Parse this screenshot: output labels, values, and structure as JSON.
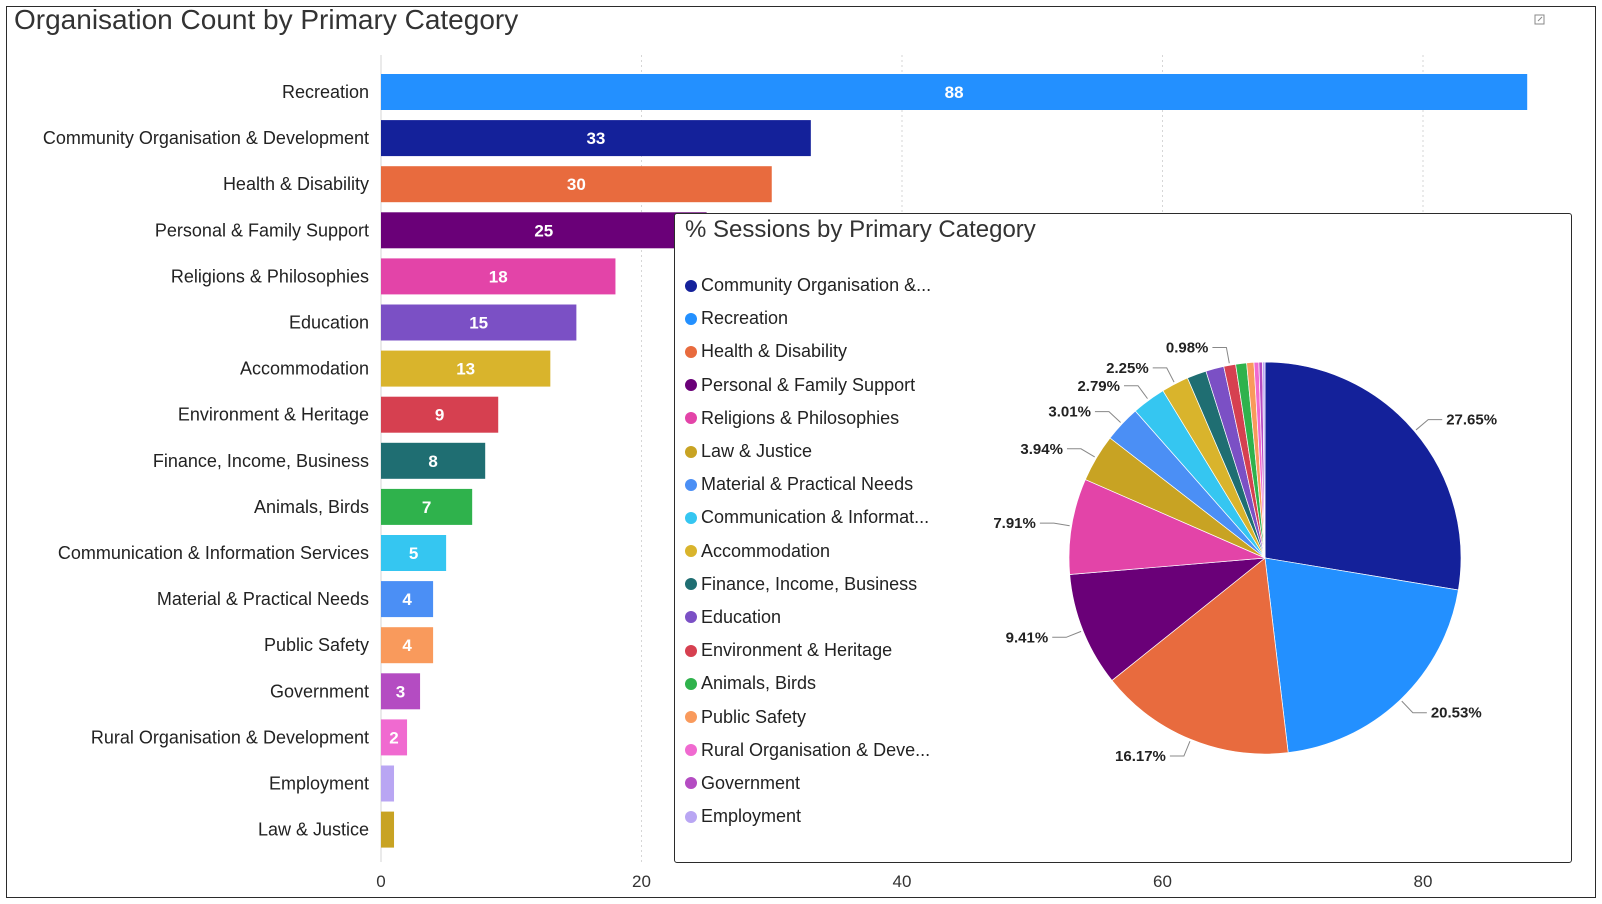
{
  "bar_chart": {
    "title": "Organisation Count by Primary Category"
  },
  "pie_chart": {
    "title": "% Sessions by Primary Category",
    "legend": [
      {
        "label": "Community Organisation &...",
        "color": "#14219a"
      },
      {
        "label": "Recreation",
        "color": "#2390ff"
      },
      {
        "label": "Health & Disability",
        "color": "#e86b3e"
      },
      {
        "label": "Personal & Family Support",
        "color": "#6a0078"
      },
      {
        "label": "Religions & Philosophies",
        "color": "#e344a8"
      },
      {
        "label": "Law & Justice",
        "color": "#c8a323"
      },
      {
        "label": "Material & Practical Needs",
        "color": "#4b8ff5"
      },
      {
        "label": "Communication & Informat...",
        "color": "#35c6f1"
      },
      {
        "label": "Accommodation",
        "color": "#d9b42c"
      },
      {
        "label": "Finance, Income, Business",
        "color": "#1f6e72"
      },
      {
        "label": "Education",
        "color": "#7b50c5"
      },
      {
        "label": "Environment & Heritage",
        "color": "#d64050"
      },
      {
        "label": "Animals, Birds",
        "color": "#2fb24c"
      },
      {
        "label": "Public Safety",
        "color": "#f99a5c"
      },
      {
        "label": "Rural Organisation & Deve...",
        "color": "#f06ad0"
      },
      {
        "label": "Government",
        "color": "#b44cc2"
      },
      {
        "label": "Employment",
        "color": "#b9a6f3"
      }
    ]
  },
  "chart_data": [
    {
      "type": "bar",
      "orientation": "horizontal",
      "title": "Organisation Count by Primary Category",
      "categories": [
        "Recreation",
        "Community Organisation & Development",
        "Health & Disability",
        "Personal & Family Support",
        "Religions & Philosophies",
        "Education",
        "Accommodation",
        "Environment & Heritage",
        "Finance, Income, Business",
        "Animals, Birds",
        "Communication & Information Services",
        "Material & Practical Needs",
        "Public Safety",
        "Government",
        "Rural Organisation & Development",
        "Employment",
        "Law & Justice"
      ],
      "values": [
        88,
        33,
        30,
        25,
        18,
        15,
        13,
        9,
        8,
        7,
        5,
        4,
        4,
        3,
        2,
        1,
        1
      ],
      "data_labels": [
        "88",
        "33",
        "30",
        "25",
        "18",
        "15",
        "13",
        "9",
        "8",
        "7",
        "5",
        "4",
        "4",
        "3",
        "2",
        "",
        ""
      ],
      "colors": [
        "#2390ff",
        "#14219a",
        "#e86b3e",
        "#6a0078",
        "#e344a8",
        "#7b50c5",
        "#d9b42c",
        "#d64050",
        "#1f6e72",
        "#2fb24c",
        "#35c6f1",
        "#4b8ff5",
        "#f99a5c",
        "#b44cc2",
        "#f06ad0",
        "#b9a6f3",
        "#c8a323"
      ],
      "x_ticks": [
        "0",
        "20",
        "40",
        "60",
        "80"
      ],
      "xlim": [
        0,
        90
      ],
      "grid": true
    },
    {
      "type": "pie",
      "title": "% Sessions by Primary Category",
      "slices": [
        {
          "label": "Community Organisation &...",
          "value": 27.65,
          "text": "27.65%",
          "color": "#14219a"
        },
        {
          "label": "Recreation",
          "value": 20.53,
          "text": "20.53%",
          "color": "#2390ff"
        },
        {
          "label": "Health & Disability",
          "value": 16.17,
          "text": "16.17%",
          "color": "#e86b3e"
        },
        {
          "label": "Personal & Family Support",
          "value": 9.41,
          "text": "9.41%",
          "color": "#6a0078"
        },
        {
          "label": "Religions & Philosophies",
          "value": 7.91,
          "text": "7.91%",
          "color": "#e344a8"
        },
        {
          "label": "Law & Justice",
          "value": 3.94,
          "text": "3.94%",
          "color": "#c8a323"
        },
        {
          "label": "Material & Practical Needs",
          "value": 3.01,
          "text": "3.01%",
          "color": "#4b8ff5"
        },
        {
          "label": "Communication & Informat...",
          "value": 2.79,
          "text": "2.79%",
          "color": "#35c6f1"
        },
        {
          "label": "Accommodation",
          "value": 2.25,
          "text": "2.25%",
          "color": "#d9b42c"
        },
        {
          "label": "Finance, Income, Business",
          "value": 1.6,
          "text": "",
          "color": "#1f6e72"
        },
        {
          "label": "Education",
          "value": 1.5,
          "text": "",
          "color": "#7b50c5"
        },
        {
          "label": "Environment & Heritage",
          "value": 0.98,
          "text": "0.98%",
          "color": "#d64050"
        },
        {
          "label": "Animals, Birds",
          "value": 0.9,
          "text": "",
          "color": "#2fb24c"
        },
        {
          "label": "Public Safety",
          "value": 0.6,
          "text": "",
          "color": "#f99a5c"
        },
        {
          "label": "Rural Organisation & Deve...",
          "value": 0.4,
          "text": "",
          "color": "#f06ad0"
        },
        {
          "label": "Government",
          "value": 0.3,
          "text": "",
          "color": "#b44cc2"
        },
        {
          "label": "Employment",
          "value": 0.2,
          "text": "",
          "color": "#b9a6f3"
        }
      ]
    }
  ]
}
